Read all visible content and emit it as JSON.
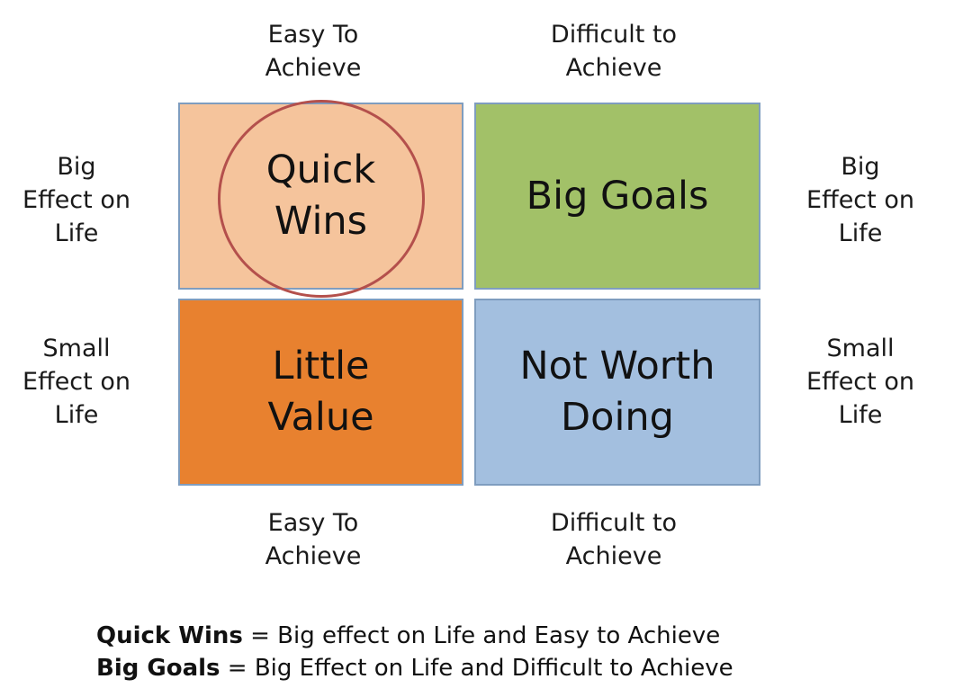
{
  "colors": {
    "quick_wins": "#f5c49c",
    "big_goals": "#a2c168",
    "little_value": "#e8812f",
    "not_worth_doing": "#a3bfdf",
    "border": "#7f9dbf",
    "highlight_circle": "#b4504c"
  },
  "columns": {
    "top_left": [
      "Easy To",
      "Achieve"
    ],
    "top_right": [
      "Difficult to",
      "Achieve"
    ],
    "bottom_left": [
      "Easy To",
      "Achieve"
    ],
    "bottom_right": [
      "Difficult to",
      "Achieve"
    ]
  },
  "rows": {
    "left_top": [
      "Big",
      "Effect on",
      "Life"
    ],
    "right_top": [
      "Big",
      "Effect on",
      "Life"
    ],
    "left_bottom": [
      "Small",
      "Effect on",
      "Life"
    ],
    "right_bottom": [
      "Small",
      "Effect on",
      "Life"
    ]
  },
  "quadrants": {
    "quick_wins": [
      "Quick",
      "Wins"
    ],
    "big_goals": [
      "Big Goals"
    ],
    "little_value": [
      "Little",
      "Value"
    ],
    "not_worth_doing": [
      "Not Worth",
      "Doing"
    ]
  },
  "legend": [
    {
      "term": "Quick Wins",
      "definition": " = Big effect on Life and Easy to Achieve"
    },
    {
      "term": "Big Goals",
      "definition": " = Big Effect on Life and Difficult to Achieve"
    }
  ]
}
